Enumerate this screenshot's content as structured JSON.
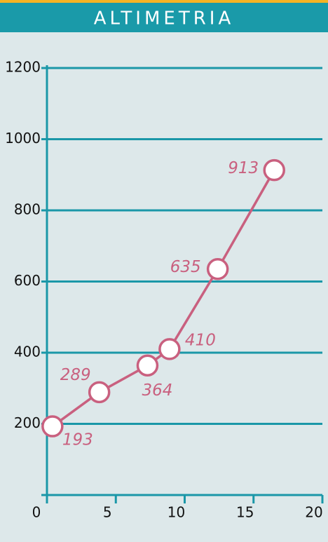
{
  "chart_data": {
    "type": "line",
    "title": "ALTIMETRIA",
    "x": [
      0.4,
      3.8,
      7.3,
      8.9,
      12.4,
      16.5
    ],
    "series": [
      {
        "color": "#c9607f",
        "values": [
          193,
          289,
          364,
          410,
          635,
          913
        ]
      }
    ],
    "xlim": [
      0,
      20
    ],
    "xticks": [
      0,
      5,
      10,
      15,
      20
    ],
    "ylim": [
      0,
      1200
    ],
    "yticks": [
      200,
      400,
      600,
      800,
      1000,
      1200
    ],
    "grid": true
  }
}
